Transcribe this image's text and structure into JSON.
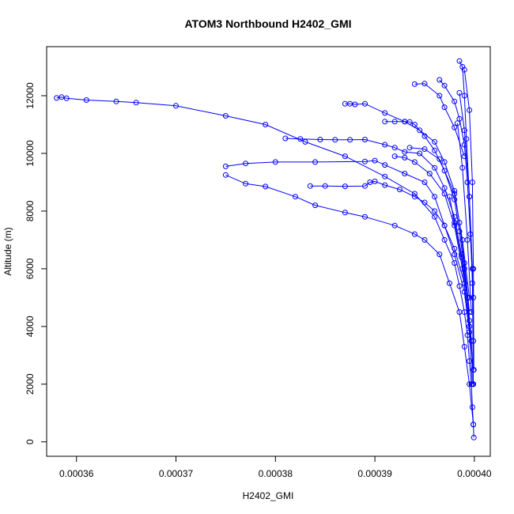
{
  "chart_data": {
    "type": "line",
    "title": "ATOM3 Northbound H2402_GMI",
    "xlabel": "H2402_GMI",
    "ylabel": "Altitude (m)",
    "xlim": [
      0.000357,
      0.0004016
    ],
    "ylim": [
      -500,
      13700
    ],
    "grid": false,
    "legend": "none",
    "x_ticks": [
      0.00036,
      0.00037,
      0.00038,
      0.00039,
      0.0004
    ],
    "x_tick_labels": [
      "0.00036",
      "0.00037",
      "0.00038",
      "0.00039",
      "0.00040"
    ],
    "y_ticks": [
      0,
      2000,
      4000,
      6000,
      8000,
      10000,
      12000
    ],
    "y_tick_labels": [
      "0",
      "2000",
      "4000",
      "6000",
      "8000",
      "10000",
      "12000"
    ],
    "marker": "open-circle",
    "color": "#0000ff",
    "series": [
      {
        "x": [
          0.000358,
          0.0003585,
          0.000359,
          0.000361,
          0.000364,
          0.000366,
          0.00037,
          0.000375,
          0.000379,
          0.000383,
          0.000387,
          0.000391,
          0.000394,
          0.000396,
          0.000397,
          0.000398,
          0.0003985,
          0.000399,
          0.0003993,
          0.0003995,
          0.0003997,
          0.0003998,
          0.0003999,
          0.00039995
        ],
        "y": [
          11920,
          11950,
          11910,
          11850,
          11800,
          11760,
          11650,
          11300,
          11000,
          10400,
          9900,
          9200,
          8600,
          7800,
          7000,
          6200,
          5400,
          4500,
          3700,
          2800,
          2000,
          1200,
          600,
          150
        ]
      },
      {
        "x": [
          0.000375,
          0.000377,
          0.00038,
          0.000384,
          0.000389,
          0.00039,
          0.000391,
          0.000393,
          0.000395,
          0.000396,
          0.000397,
          0.000398,
          0.000399,
          0.0003995,
          0.0003998
        ],
        "y": [
          9550,
          9650,
          9700,
          9700,
          9720,
          9750,
          9600,
          9300,
          9000,
          8500,
          7500,
          6500,
          5200,
          3800,
          2000
        ]
      },
      {
        "x": [
          0.000375,
          0.000377,
          0.000379,
          0.000382,
          0.000384,
          0.000387,
          0.000389,
          0.000392,
          0.000394,
          0.000395,
          0.0003965,
          0.0003975,
          0.0003985,
          0.000399,
          0.0003995,
          0.0003999
        ],
        "y": [
          9250,
          8950,
          8850,
          8500,
          8200,
          7950,
          7800,
          7500,
          7200,
          7000,
          6500,
          5500,
          4500,
          3300,
          2000,
          600
        ]
      },
      {
        "x": [
          0.0003835,
          0.000385,
          0.000387,
          0.000389,
          0.0003895,
          0.00039,
          0.000391,
          0.0003925,
          0.000394,
          0.000395,
          0.000396,
          0.000397,
          0.000398,
          0.000399,
          0.0003995,
          0.0003999
        ],
        "y": [
          8870,
          8870,
          8860,
          8870,
          9000,
          9030,
          8900,
          8750,
          8500,
          8300,
          8000,
          7500,
          6700,
          5500,
          4000,
          2500
        ]
      },
      {
        "x": [
          0.000381,
          0.0003825,
          0.0003845,
          0.000386,
          0.0003875,
          0.000389,
          0.000391,
          0.000392,
          0.000393,
          0.0003945,
          0.000396,
          0.000397,
          0.000398,
          0.0003987,
          0.0003993,
          0.0003997
        ],
        "y": [
          10520,
          10500,
          10480,
          10470,
          10470,
          10480,
          10300,
          10200,
          10050,
          10000,
          9500,
          8800,
          7800,
          6500,
          5000,
          3500
        ]
      },
      {
        "x": [
          0.000387,
          0.0003875,
          0.000388,
          0.000389,
          0.000391,
          0.000393,
          0.0003945,
          0.000396,
          0.000397,
          0.000398,
          0.0003985,
          0.000399,
          0.0003995
        ],
        "y": [
          11720,
          11720,
          11700,
          11720,
          11400,
          11100,
          10800,
          10400,
          9700,
          8700,
          7600,
          6200,
          4500
        ]
      },
      {
        "x": [
          0.000391,
          0.000392,
          0.000393,
          0.0003935,
          0.000394,
          0.000395,
          0.000396,
          0.000397,
          0.000398,
          0.0003985,
          0.000399,
          0.0003995
        ],
        "y": [
          11100,
          11100,
          11100,
          11090,
          11000,
          10600,
          10100,
          9400,
          8400,
          7300,
          6000,
          4200
        ]
      },
      {
        "x": [
          0.0003965,
          0.000397,
          0.000398,
          0.0003985,
          0.000399,
          0.0003993,
          0.0003996,
          0.0003999
        ],
        "y": [
          12550,
          12350,
          11800,
          11200,
          10300,
          9000,
          7200,
          5000
        ]
      },
      {
        "x": [
          0.000394,
          0.000395,
          0.0003965,
          0.000397,
          0.000398,
          0.000399
        ],
        "y": [
          12400,
          12420,
          12000,
          11600,
          10900,
          9900
        ]
      },
      {
        "x": [
          0.0003985,
          0.0003988,
          0.000399,
          0.0003992,
          0.0003995,
          0.0003998,
          0.0003999
        ],
        "y": [
          13200,
          13000,
          12000,
          10500,
          8500,
          6000,
          3500
        ]
      },
      {
        "x": [
          0.000399,
          0.0003995,
          0.0003998,
          0.0003999,
          0.00039995
        ],
        "y": [
          12900,
          11500,
          9000,
          6000,
          2500
        ]
      },
      {
        "x": [
          0.000392,
          0.000393,
          0.000394,
          0.0003955,
          0.000397,
          0.000398,
          0.0003988,
          0.0003995
        ],
        "y": [
          9900,
          9850,
          9700,
          9300,
          8600,
          7500,
          6000,
          4000
        ]
      },
      {
        "x": [
          0.0003935,
          0.000395,
          0.0003965,
          0.000398,
          0.0003988,
          0.0003995
        ],
        "y": [
          10200,
          10150,
          9800,
          8600,
          7000,
          5000
        ]
      },
      {
        "x": [
          0.0003975,
          0.000398,
          0.0003987,
          0.0003993,
          0.0003997,
          0.0003999
        ],
        "y": [
          8500,
          7600,
          6400,
          5000,
          3500,
          2000
        ]
      },
      {
        "x": [
          0.0003985,
          0.000399,
          0.0003995,
          0.0003998,
          0.0003999
        ],
        "y": [
          12100,
          10800,
          8500,
          5500,
          2000
        ]
      },
      {
        "x": [
          0.0003983,
          0.0003988,
          0.0003993,
          0.0003997
        ],
        "y": [
          11050,
          9500,
          7000,
          4500
        ]
      }
    ]
  }
}
